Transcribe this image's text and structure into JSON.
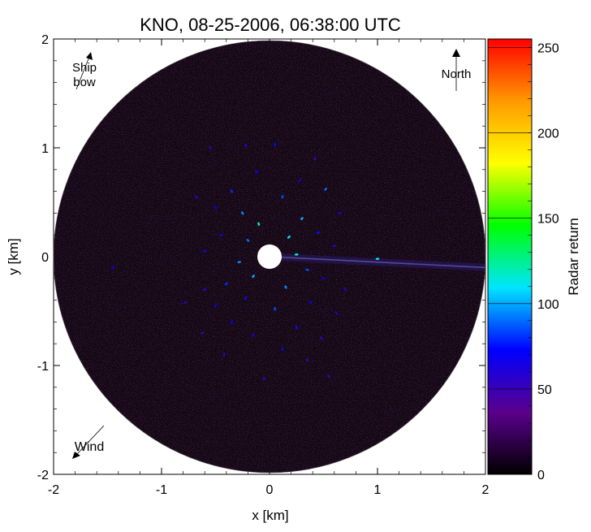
{
  "chart_data": {
    "type": "heatmap",
    "title": "KNO, 08-25-2006, 06:38:00 UTC",
    "xlabel": "x [km]",
    "ylabel": "y [km]",
    "xlim": [
      -2,
      2
    ],
    "ylim": [
      -2,
      2
    ],
    "x_ticks": [
      -2,
      -1,
      0,
      1,
      2
    ],
    "y_ticks": [
      -2,
      -1,
      0,
      1,
      2
    ],
    "colorbar": {
      "label": "Radar return",
      "range": [
        0,
        255
      ],
      "ticks": [
        0,
        50,
        100,
        150,
        200,
        250
      ],
      "colormap": [
        "#000000",
        "#5a008c",
        "#0000ff",
        "#00e5ff",
        "#00ff00",
        "#ffff00",
        "#ff9900",
        "#ff0000"
      ]
    },
    "annotations": {
      "ship_bow": "Ship bow",
      "ship_bow_line1": "Ship",
      "ship_bow_line2": "bow",
      "north": "North",
      "wind": "Wind"
    },
    "background_disc_color": "#120812",
    "returns": [
      {
        "x": 0.05,
        "y": 1.03,
        "v": 75
      },
      {
        "x": -0.22,
        "y": 1.02,
        "v": 60
      },
      {
        "x": -0.55,
        "y": 1.0,
        "v": 55
      },
      {
        "x": 0.42,
        "y": 0.9,
        "v": 50
      },
      {
        "x": -0.12,
        "y": 0.78,
        "v": 70
      },
      {
        "x": 0.28,
        "y": 0.7,
        "v": 65
      },
      {
        "x": -0.35,
        "y": 0.6,
        "v": 80
      },
      {
        "x": 0.52,
        "y": 0.62,
        "v": 90
      },
      {
        "x": -0.68,
        "y": 0.55,
        "v": 55
      },
      {
        "x": 0.12,
        "y": 0.55,
        "v": 85
      },
      {
        "x": -0.5,
        "y": 0.45,
        "v": 70
      },
      {
        "x": 0.65,
        "y": 0.4,
        "v": 60
      },
      {
        "x": -0.25,
        "y": 0.4,
        "v": 95
      },
      {
        "x": 0.3,
        "y": 0.35,
        "v": 100
      },
      {
        "x": -0.1,
        "y": 0.3,
        "v": 120
      },
      {
        "x": 0.45,
        "y": 0.22,
        "v": 75
      },
      {
        "x": -0.45,
        "y": 0.2,
        "v": 65
      },
      {
        "x": 0.18,
        "y": 0.18,
        "v": 110
      },
      {
        "x": -0.2,
        "y": 0.15,
        "v": 90
      },
      {
        "x": 0.6,
        "y": 0.1,
        "v": 55
      },
      {
        "x": -0.6,
        "y": 0.05,
        "v": 60
      },
      {
        "x": 0.25,
        "y": 0.02,
        "v": 115
      },
      {
        "x": -0.28,
        "y": -0.05,
        "v": 95
      },
      {
        "x": 1.0,
        "y": -0.02,
        "v": 110
      },
      {
        "x": -1.45,
        "y": -0.1,
        "v": 70
      },
      {
        "x": 0.35,
        "y": -0.12,
        "v": 85
      },
      {
        "x": -0.15,
        "y": -0.18,
        "v": 100
      },
      {
        "x": 0.5,
        "y": -0.2,
        "v": 70
      },
      {
        "x": -0.4,
        "y": -0.25,
        "v": 80
      },
      {
        "x": 0.15,
        "y": -0.28,
        "v": 95
      },
      {
        "x": -0.6,
        "y": -0.3,
        "v": 55
      },
      {
        "x": 0.7,
        "y": -0.3,
        "v": 60
      },
      {
        "x": -0.22,
        "y": -0.38,
        "v": 75
      },
      {
        "x": 0.38,
        "y": -0.42,
        "v": 70
      },
      {
        "x": -0.5,
        "y": -0.45,
        "v": 65
      },
      {
        "x": 0.05,
        "y": -0.48,
        "v": 85
      },
      {
        "x": -0.78,
        "y": -0.42,
        "v": 55
      },
      {
        "x": 0.62,
        "y": -0.52,
        "v": 60
      },
      {
        "x": -0.35,
        "y": -0.6,
        "v": 70
      },
      {
        "x": 0.25,
        "y": -0.65,
        "v": 75
      },
      {
        "x": -0.15,
        "y": -0.72,
        "v": 60
      },
      {
        "x": 0.48,
        "y": -0.75,
        "v": 55
      },
      {
        "x": -0.62,
        "y": -0.7,
        "v": 50
      },
      {
        "x": 0.12,
        "y": -0.85,
        "v": 65
      },
      {
        "x": -0.42,
        "y": -0.9,
        "v": 55
      },
      {
        "x": 0.35,
        "y": -0.95,
        "v": 50
      },
      {
        "x": -0.05,
        "y": -1.12,
        "v": 55
      },
      {
        "x": 0.55,
        "y": -1.1,
        "v": 50
      }
    ],
    "streak": [
      {
        "x": 0.0,
        "y": 0.0
      },
      {
        "x": 2.0,
        "y": -0.1
      }
    ]
  }
}
